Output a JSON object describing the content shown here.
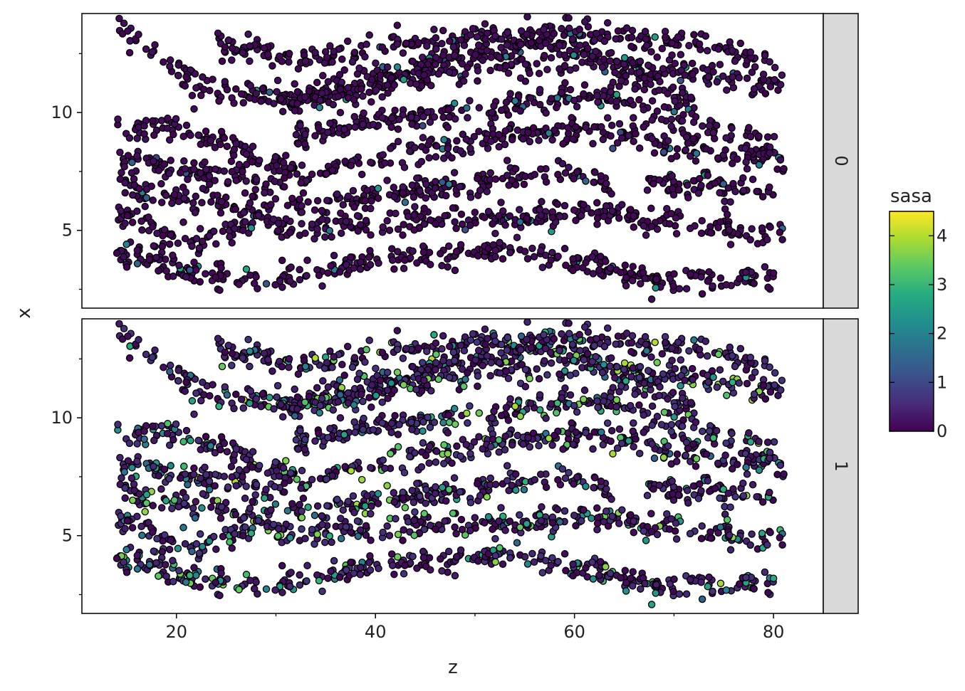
{
  "chart_data": {
    "type": "scatter",
    "facet_layout": "rows",
    "xlabel": "z",
    "ylabel": "x",
    "xlim": [
      10.5,
      85
    ],
    "ylim": [
      1.7,
      14.2
    ],
    "x_ticks": [
      20,
      40,
      60,
      80
    ],
    "y_ticks": [
      5,
      10
    ],
    "grid": false,
    "color_scale": {
      "title": "sasa",
      "colormap": "viridis",
      "range": [
        0,
        4.5
      ],
      "ticks": [
        0,
        1,
        2,
        3,
        4
      ],
      "stops": [
        "#440154",
        "#472c7a",
        "#3b518b",
        "#2c718e",
        "#21908d",
        "#27ad81",
        "#5cc863",
        "#aadc32",
        "#fde725"
      ]
    },
    "marker": {
      "shape": "circle",
      "edge_color": "#000000"
    },
    "panels": [
      {
        "label": "0",
        "sasa_typical": 0.2,
        "sasa_highlight_max": 2.6
      },
      {
        "label": "1",
        "sasa_typical": 0.7,
        "sasa_highlight_max": 4.0
      }
    ],
    "strands": [
      {
        "z": [
          14,
          16,
          18,
          20,
          22,
          24,
          26,
          28,
          30,
          34,
          38,
          42,
          46,
          50,
          54,
          58,
          62,
          64,
          66,
          68,
          70,
          72
        ],
        "x": [
          13.4,
          13.2,
          12.6,
          11.9,
          11.3,
          10.9,
          10.8,
          10.8,
          10.7,
          10.9,
          11.3,
          11.8,
          12.3,
          12.6,
          12.8,
          13.0,
          12.4,
          11.8,
          11.5,
          11.2,
          10.8,
          10.5
        ]
      },
      {
        "z": [
          24,
          28,
          32,
          36,
          40,
          44,
          48,
          52,
          56,
          60,
          62,
          64,
          66,
          70,
          74,
          78,
          81
        ],
        "x": [
          12.9,
          12.6,
          12.2,
          12.5,
          12.8,
          13.0,
          13.1,
          13.2,
          13.3,
          13.5,
          13.3,
          13.2,
          13.1,
          13.0,
          12.8,
          12.4,
          12.1
        ]
      },
      {
        "z": [
          30,
          34,
          38,
          42,
          46,
          50,
          54,
          58,
          62,
          66,
          70,
          74,
          78,
          81
        ],
        "x": [
          10.3,
          10.5,
          11.0,
          11.3,
          11.6,
          11.8,
          12.0,
          12.1,
          12.3,
          12.0,
          11.8,
          11.6,
          11.3,
          11.1
        ]
      },
      {
        "z": [
          14,
          16,
          18,
          20,
          22,
          24,
          26,
          28,
          30,
          32
        ],
        "x": [
          9.3,
          9.4,
          9.5,
          9.4,
          9.1,
          8.8,
          8.4,
          8.0,
          7.8,
          7.6
        ]
      },
      {
        "z": [
          32,
          36,
          40,
          44,
          48,
          52,
          56,
          60,
          64,
          68,
          72,
          76,
          80
        ],
        "x": [
          9.0,
          9.4,
          9.6,
          9.8,
          10.0,
          10.2,
          10.5,
          10.7,
          10.5,
          10.0,
          9.5,
          9.0,
          8.8
        ]
      },
      {
        "z": [
          14,
          18,
          22,
          26,
          30,
          34,
          38,
          42,
          46,
          50,
          54,
          58,
          62,
          66,
          70
        ],
        "x": [
          8.0,
          7.8,
          7.4,
          7.3,
          7.2,
          7.4,
          7.8,
          8.2,
          8.5,
          8.8,
          9.0,
          9.2,
          9.3,
          9.0,
          8.4
        ]
      },
      {
        "z": [
          70,
          74,
          78,
          81
        ],
        "x": [
          8.6,
          8.3,
          8.2,
          8.1
        ]
      },
      {
        "z": [
          14,
          18,
          22,
          26,
          30,
          34,
          38,
          42,
          46,
          50,
          54,
          58,
          62,
          64
        ],
        "x": [
          6.9,
          6.6,
          6.3,
          6.1,
          6.0,
          6.0,
          6.3,
          6.6,
          6.8,
          7.0,
          7.2,
          7.4,
          7.3,
          6.7
        ]
      },
      {
        "z": [
          67,
          71,
          75,
          79,
          81
        ],
        "x": [
          7.1,
          6.9,
          6.8,
          6.9,
          7.0
        ]
      },
      {
        "z": [
          14,
          16,
          18,
          20,
          22,
          24,
          26,
          28,
          30
        ],
        "x": [
          5.7,
          5.4,
          5.0,
          4.7,
          4.6,
          4.8,
          5.1,
          5.3,
          5.4
        ]
      },
      {
        "z": [
          30,
          34,
          38,
          42,
          46,
          50,
          54,
          58,
          62,
          66,
          70,
          74,
          78,
          81
        ],
        "x": [
          5.0,
          5.1,
          5.2,
          5.3,
          5.4,
          5.5,
          5.6,
          5.7,
          5.8,
          5.6,
          5.3,
          5.0,
          4.9,
          5.0
        ]
      },
      {
        "z": [
          14,
          17,
          20,
          23,
          26,
          29,
          32,
          36,
          40,
          44,
          48,
          52,
          56,
          60,
          64,
          66,
          68,
          72,
          76,
          80
        ],
        "x": [
          4.1,
          3.8,
          3.5,
          3.1,
          3.0,
          2.9,
          3.1,
          3.4,
          3.7,
          3.9,
          4.0,
          4.1,
          4.0,
          3.7,
          3.4,
          3.0,
          2.8,
          2.9,
          3.0,
          3.0
        ]
      }
    ]
  }
}
